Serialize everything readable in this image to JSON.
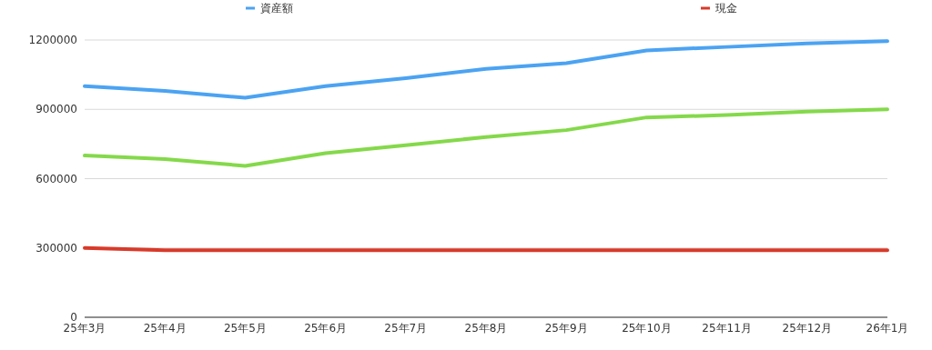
{
  "chart_data": {
    "type": "line",
    "categories": [
      "25年3月",
      "25年4月",
      "25年5月",
      "25年6月",
      "25年7月",
      "25年8月",
      "25年9月",
      "25年10月",
      "25年11月",
      "25年12月",
      "26年1月"
    ],
    "series": [
      {
        "name": "資産額",
        "color": "#4ba3f2",
        "values": [
          1000000,
          980000,
          950000,
          1000000,
          1035000,
          1075000,
          1100000,
          1155000,
          1170000,
          1185000,
          1195000
        ]
      },
      {
        "color": "#84d94a",
        "values": [
          700000,
          685000,
          655000,
          710000,
          745000,
          780000,
          810000,
          865000,
          875000,
          890000,
          900000
        ]
      },
      {
        "name": "現金",
        "color": "#d83a2a",
        "values": [
          300000,
          290000,
          290000,
          290000,
          290000,
          290000,
          290000,
          290000,
          290000,
          290000,
          290000
        ]
      }
    ],
    "ylim": [
      0,
      1200000
    ],
    "yticks": [
      0,
      300000,
      600000,
      900000,
      1200000
    ],
    "grid": "y",
    "legend": "top",
    "line_style": "solid",
    "marker": "none"
  }
}
